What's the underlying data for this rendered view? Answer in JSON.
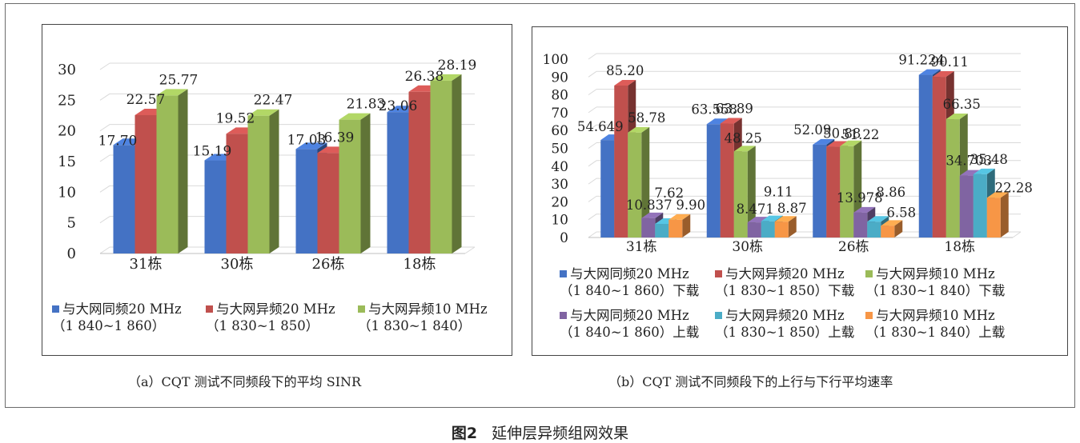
{
  "figure": {
    "number": "图2",
    "title": "延伸层异频组网效果"
  },
  "colors": {
    "blue": "#4472c4",
    "red": "#c0504d",
    "green": "#9bbb59",
    "purple": "#8064a2",
    "cyan": "#4bacc6",
    "orange": "#f79646"
  },
  "chart_data": [
    {
      "id": "a",
      "type": "bar",
      "style": "3d-clustered-column",
      "caption": "（a）CQT 测试不同频段下的平均 SINR",
      "title": "",
      "xlabel": "",
      "ylabel": "",
      "ylim": [
        0,
        30
      ],
      "yticks": [
        0,
        5,
        10,
        15,
        20,
        25,
        30
      ],
      "grid": true,
      "legend_position": "bottom",
      "categories": [
        "31栋",
        "30栋",
        "26栋",
        "18栋"
      ],
      "series": [
        {
          "name": "与大网同频20 MHz",
          "name2": "（1 840~1 860）",
          "color": "#4472c4",
          "values": [
            17.7,
            15.19,
            17.03,
            23.06
          ],
          "labels": [
            "17.70",
            "15.19",
            "17.03",
            "23.06"
          ]
        },
        {
          "name": "与大网异频20 MHz",
          "name2": "（1 830~1 850）",
          "color": "#c0504d",
          "values": [
            22.57,
            19.52,
            16.39,
            26.38
          ],
          "labels": [
            "22.57",
            "19.52",
            "16.39",
            "26.38"
          ]
        },
        {
          "name": "与大网异频10 MHz",
          "name2": "（1 830~1 840）",
          "color": "#9bbb59",
          "values": [
            25.77,
            22.47,
            21.83,
            28.19
          ],
          "labels": [
            "25.77",
            "22.47",
            "21.83",
            "28.19"
          ]
        }
      ]
    },
    {
      "id": "b",
      "type": "bar",
      "style": "3d-clustered-column",
      "caption": "（b）CQT 测试不同频段下的上行与下行平均速率",
      "title": "",
      "xlabel": "",
      "ylabel": "",
      "ylim": [
        0,
        100
      ],
      "yticks": [
        0,
        10,
        20,
        30,
        40,
        50,
        60,
        70,
        80,
        90,
        100
      ],
      "grid": true,
      "legend_position": "bottom",
      "categories": [
        "31栋",
        "30栋",
        "26栋",
        "18栋"
      ],
      "series": [
        {
          "name": "与大网同频20 MHz",
          "name2": "（1 840~1 860）下载",
          "color": "#4472c4",
          "values": [
            54.649,
            63.558,
            52.09,
            91.224
          ],
          "labels": [
            "54.649",
            "63.558",
            "52.09",
            "91.224"
          ]
        },
        {
          "name": "与大网异频20 MHz",
          "name2": "（1 830~1 850）下载",
          "color": "#c0504d",
          "values": [
            85.2,
            63.89,
            50.88,
            90.11
          ],
          "labels": [
            "85.20",
            "63.89",
            "50.88",
            "90.11"
          ]
        },
        {
          "name": "与大网异频10 MHz",
          "name2": "（1 830~1 840）下载",
          "color": "#9bbb59",
          "values": [
            58.78,
            48.25,
            51.22,
            66.35
          ],
          "labels": [
            "58.78",
            "48.25",
            "51.22",
            "66.35"
          ]
        },
        {
          "name": "与大网同频20 MHz",
          "name2": "（1 840~1 860）上载",
          "color": "#8064a2",
          "values": [
            10.837,
            8.471,
            13.978,
            34.703
          ],
          "labels": [
            "10.837",
            "8.471",
            "13.978",
            "34.703"
          ]
        },
        {
          "name": "与大网异频20 MHz",
          "name2": "（1 830~1 850）上载",
          "color": "#4bacc6",
          "values": [
            7.62,
            9.11,
            8.86,
            35.48
          ],
          "labels": [
            "7.62",
            "9.11",
            "8.86",
            "35.48"
          ]
        },
        {
          "name": "与大网异频10 MHz",
          "name2": "（1 830~1 840）上载",
          "color": "#f79646",
          "values": [
            9.9,
            8.87,
            6.58,
            22.28
          ],
          "labels": [
            "9.90",
            "8.87",
            "6.58",
            "22.28"
          ]
        }
      ]
    }
  ]
}
